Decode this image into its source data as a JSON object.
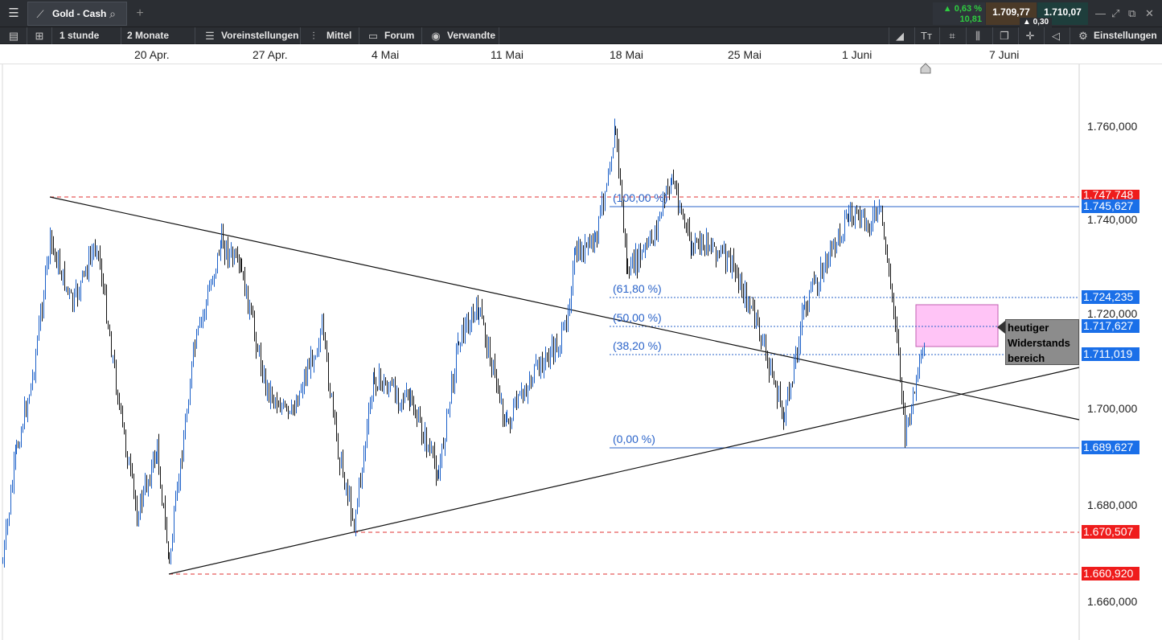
{
  "tab": {
    "instrument": "Gold - Cash",
    "icons": [
      "menu-icon",
      "chart-line-icon",
      "search-icon",
      "add-tab-icon"
    ]
  },
  "quote": {
    "change_pct": "▲ 0,63 %",
    "change_abs": "10,81",
    "bid": "1.709,77",
    "ask": "1.710,07",
    "spread": "▲ 0,30"
  },
  "toolbar": {
    "interval": "1 stunde",
    "range": "2 Monate",
    "settings_label": "Voreinstellungen",
    "indicator_label": "Mittel",
    "forum_label": "Forum",
    "related_label": "Verwandte",
    "einstellungen_label": "Einstellungen"
  },
  "dates": [
    "20 Apr.",
    "27 Apr.",
    "4 Mai",
    "11 Mai",
    "18 Mai",
    "25 Mai",
    "1 Juni",
    "7 Juni"
  ],
  "price_axis": [
    "1.760,000",
    "1.740,000",
    "1.720,000",
    "1.700,000",
    "1.680,000",
    "1.660,000"
  ],
  "tags": {
    "t1747": "1.747,748",
    "t1745": "1.745,627",
    "t1724": "1.724,235",
    "t1717": "1.717,627",
    "t1711": "1.711,019",
    "t1689": "1.689,627",
    "t1670": "1.670,507",
    "t1660": "1.660,920"
  },
  "fib": {
    "f100": "(100,00 %)",
    "f618": "(61,80 %)",
    "f50": "(50,00 %)",
    "f382": "(38,20 %)",
    "f0": "(0,00 %)"
  },
  "note": {
    "line1": "heutiger",
    "line2": "Widerstands",
    "line3": "bereich"
  },
  "colors": {
    "accent_blue": "#1a6fe8",
    "alert_red": "#ef1c1c",
    "zone_pink": "#ffc4f6",
    "up_green": "#2ecc40"
  }
}
